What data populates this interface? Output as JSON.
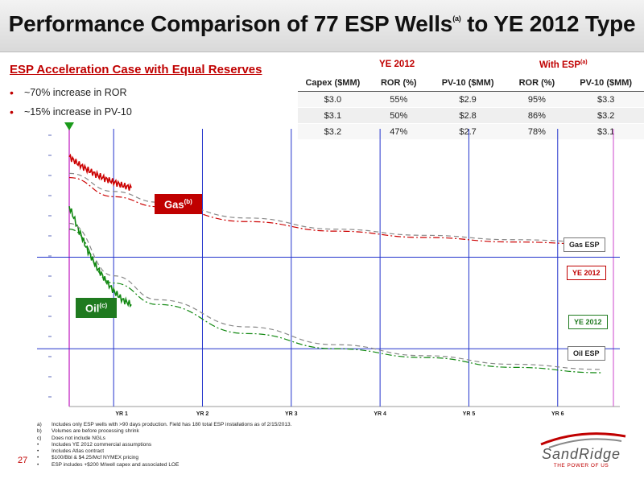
{
  "header": {
    "title_main": "Performance Comparison of 77 ESP Wells",
    "title_sup": "(a)",
    "title_tail": " to YE 2012 Type"
  },
  "left_panel": {
    "subtitle": "ESP Acceleration Case with Equal Reserves",
    "bullets": [
      "~70% increase in ROR",
      "~15% increase in PV-10"
    ]
  },
  "metrics_table": {
    "group_ye2012": "YE 2012",
    "group_esp": "With ESP",
    "group_esp_sup": "(a)",
    "columns": [
      "Capex ($MM)",
      "ROR (%)",
      "PV-10 ($MM)",
      "ROR (%)",
      "PV-10 ($MM)"
    ],
    "rows": [
      [
        "$3.0",
        "55%",
        "$2.9",
        "95%",
        "$3.3"
      ],
      [
        "$3.1",
        "50%",
        "$2.8",
        "86%",
        "$3.2"
      ],
      [
        "$3.2",
        "47%",
        "$2.7",
        "78%",
        "$3.1"
      ]
    ]
  },
  "chart_labels": {
    "gas_label": "Gas",
    "gas_sup": "(b)",
    "oil_label": "Oil",
    "oil_sup": "(c)",
    "gas_esp": "Gas ESP",
    "gas_ye2012": "YE 2012",
    "oil_ye2012": "YE 2012",
    "oil_esp": "Oil ESP"
  },
  "chart_data": {
    "type": "line",
    "title": "",
    "xlabel": "",
    "ylabel": "",
    "x_tick_labels": [
      "YR 1",
      "YR 2",
      "YR 3",
      "YR 4",
      "YR 5",
      "YR  6"
    ],
    "x_range_years": [
      0,
      6.2
    ],
    "y_scale": "log (relative rate)",
    "grid": "on",
    "series": [
      {
        "name": "Gas ESP",
        "color": "#cc0000",
        "style": "noisy solid",
        "x": [
          0.0,
          0.1,
          0.2,
          0.3,
          0.4,
          0.5,
          0.6,
          0.7
        ],
        "y": [
          1.0,
          0.92,
          0.86,
          0.81,
          0.77,
          0.74,
          0.71,
          0.69
        ]
      },
      {
        "name": "YE 2012",
        "color": "#cc0000",
        "style": "dash-dot",
        "x": [
          0,
          0.5,
          1,
          2,
          3,
          4,
          5,
          6
        ],
        "y": [
          0.78,
          0.62,
          0.55,
          0.46,
          0.41,
          0.38,
          0.36,
          0.35
        ]
      },
      {
        "name": "Gas ESP",
        "color": "#888888",
        "style": "dashed",
        "x": [
          0,
          0.5,
          1,
          2,
          3,
          4,
          5,
          6
        ],
        "y": [
          0.82,
          0.66,
          0.58,
          0.48,
          0.42,
          0.39,
          0.37,
          0.36
        ]
      },
      {
        "name": "Oil ESP",
        "color": "#118811",
        "style": "noisy solid",
        "x": [
          0.0,
          0.1,
          0.2,
          0.3,
          0.4,
          0.5,
          0.6,
          0.7
        ],
        "y": [
          0.55,
          0.42,
          0.33,
          0.27,
          0.23,
          0.2,
          0.18,
          0.17
        ]
      },
      {
        "name": "YE 2012",
        "color": "#118811",
        "style": "dash-dot",
        "x": [
          0,
          0.5,
          1,
          2,
          3,
          4,
          5,
          6
        ],
        "y": [
          0.42,
          0.22,
          0.17,
          0.12,
          0.1,
          0.09,
          0.08,
          0.075
        ]
      },
      {
        "name": "Oil ESP",
        "color": "#888888",
        "style": "dashed",
        "x": [
          0,
          0.5,
          1,
          2,
          3,
          4,
          5,
          6
        ],
        "y": [
          0.45,
          0.24,
          0.18,
          0.13,
          0.105,
          0.092,
          0.083,
          0.078
        ]
      }
    ]
  },
  "footnotes": [
    {
      "mark": "a)",
      "text": "Includes only ESP wells with >90 days production. Field has 180 total ESP installations as of 2/15/2013."
    },
    {
      "mark": "b)",
      "text": "Volumes are before processing shrink"
    },
    {
      "mark": "c)",
      "text": "Does not include NGLs"
    },
    {
      "mark": "•",
      "text": "Includes YE 2012 commercial assumptions"
    },
    {
      "mark": "•",
      "text": "Includes Atlas contract"
    },
    {
      "mark": "•",
      "text": "$100/Bbl & $4.25/Mcf NYMEX pricing"
    },
    {
      "mark": "•",
      "text": "ESP includes +$200 M/well capex and associated LOE"
    }
  ],
  "page_number": "27",
  "logo": {
    "name": "SandRidge",
    "tagline": "THE POWER OF US"
  },
  "colors": {
    "accent": "#c00000",
    "gas": "#cc0000",
    "oil": "#118811",
    "grid": "#2233cc",
    "axis_marker": "#cc44cc"
  }
}
